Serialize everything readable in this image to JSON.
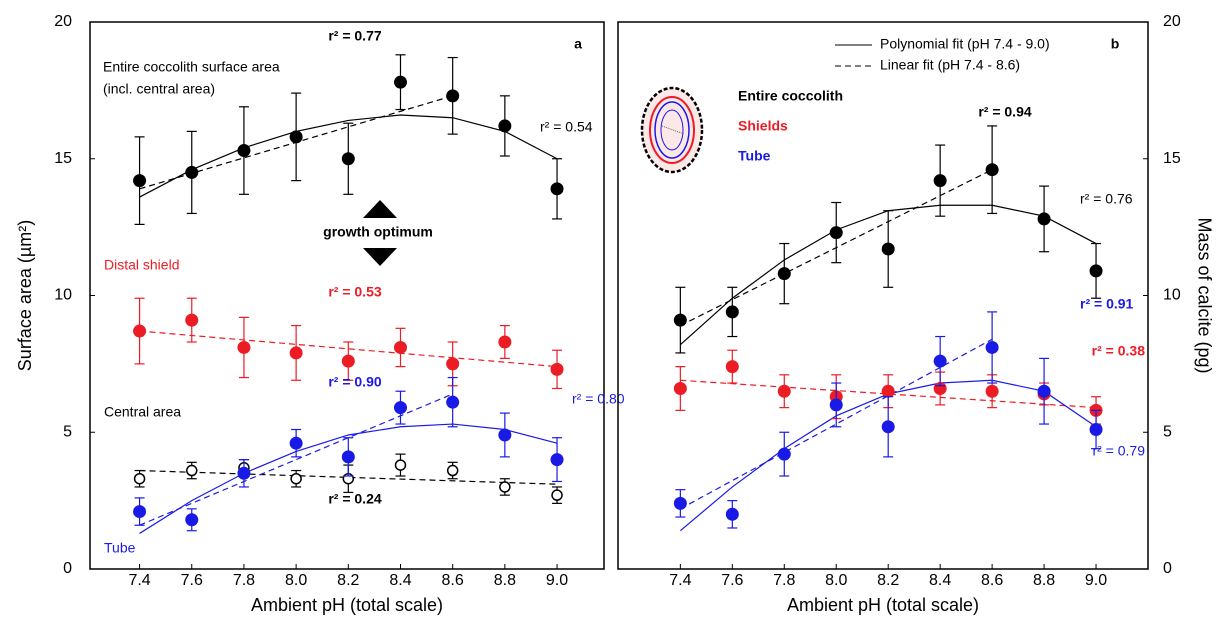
{
  "chart_data": [
    {
      "type": "scatter",
      "title": "a",
      "x_label": "Ambient pH (total scale)",
      "y_label": "Surface area (µm²)",
      "xlim": [
        7.21,
        9.18
      ],
      "ylim": [
        0,
        20
      ],
      "xticks": [
        7.4,
        7.6,
        7.8,
        {
          "value": 8,
          "label": "8.0"
        },
        8.2,
        8.4,
        8.6,
        8.8,
        {
          "value": 9,
          "label": "9.0"
        }
      ],
      "yticks": [
        0,
        5,
        10,
        15,
        20
      ],
      "y_axis_side": "left",
      "x": [
        7.4,
        7.6,
        7.8,
        8.0,
        8.2,
        8.4,
        8.6,
        8.8,
        9.0
      ],
      "series": [
        {
          "color": "#000000",
          "marker": "filled",
          "values": [
            14.2,
            14.5,
            15.3,
            15.8,
            15.0,
            17.8,
            17.3,
            16.2,
            13.9
          ],
          "errors": [
            1.6,
            1.5,
            1.6,
            1.6,
            1.3,
            1.0,
            1.4,
            1.1,
            1.1
          ]
        },
        {
          "color": "#ec1c24",
          "marker": "filled",
          "values": [
            8.7,
            9.1,
            8.1,
            7.9,
            7.6,
            8.1,
            7.5,
            8.3,
            7.3
          ],
          "errors": [
            1.2,
            0.8,
            1.1,
            1.0,
            0.7,
            0.7,
            0.8,
            0.6,
            0.7
          ]
        },
        {
          "color": "#000000",
          "marker": "open",
          "values": [
            3.3,
            3.6,
            3.7,
            3.3,
            3.3,
            3.8,
            3.6,
            3.0,
            2.7
          ],
          "errors": [
            0.3,
            0.3,
            0.3,
            0.3,
            0.5,
            0.4,
            0.3,
            0.3,
            0.3
          ]
        },
        {
          "color": "#1a1ae6",
          "marker": "filled",
          "values": [
            2.1,
            1.8,
            3.5,
            4.6,
            4.1,
            5.9,
            6.1,
            4.9,
            4.0
          ],
          "errors": [
            0.5,
            0.4,
            0.5,
            0.5,
            0.7,
            0.6,
            0.9,
            0.8,
            0.8
          ]
        }
      ],
      "fits": [
        {
          "kind": "polynomial",
          "color": "#000000",
          "x": [
            7.4,
            7.6,
            7.8,
            8.0,
            8.2,
            8.4,
            8.6,
            8.8,
            9.0
          ],
          "values": [
            13.6,
            14.6,
            15.4,
            16.0,
            16.4,
            16.6,
            16.5,
            16.0,
            15.0
          ]
        },
        {
          "kind": "linear",
          "color": "#000000",
          "x": [
            7.4,
            8.6
          ],
          "values": [
            13.9,
            17.3
          ]
        },
        {
          "kind": "linear",
          "color": "#ec1c24",
          "x": [
            7.4,
            9.0
          ],
          "values": [
            8.7,
            7.4
          ]
        },
        {
          "kind": "linear",
          "color": "#000000",
          "x": [
            7.4,
            9.0
          ],
          "values": [
            3.6,
            3.1
          ]
        },
        {
          "kind": "polynomial",
          "color": "#1a1ae6",
          "x": [
            7.4,
            7.6,
            7.8,
            8.0,
            8.2,
            8.4,
            8.6,
            8.8,
            9.0
          ],
          "values": [
            1.3,
            2.5,
            3.5,
            4.3,
            4.9,
            5.2,
            5.3,
            5.1,
            4.6
          ]
        },
        {
          "kind": "linear",
          "color": "#1a1ae6",
          "x": [
            7.4,
            8.6
          ],
          "values": [
            1.6,
            6.4
          ]
        }
      ],
      "annotations": [
        {
          "text": "r² = 0.77",
          "color": "#000000",
          "bold": true
        },
        {
          "text": "Entire coccolith surface area",
          "color": "#000000",
          "bold": false
        },
        {
          "text": "(incl. central area)",
          "color": "#000000",
          "bold": false
        },
        {
          "text": "r² = 0.54",
          "color": "#000000",
          "bold": false
        },
        {
          "text": "growth optimum",
          "color": "#000000",
          "bold": true
        },
        {
          "text": "Distal shield",
          "color": "#ec1c24",
          "bold": false
        },
        {
          "text": "r² = 0.53",
          "color": "#ec1c24",
          "bold": true
        },
        {
          "text": "r² = 0.90",
          "color": "#1a1ae6",
          "bold": true
        },
        {
          "text": "r² = 0.80",
          "color": "#1a1ae6",
          "bold": false
        },
        {
          "text": "Central area",
          "color": "#000000",
          "bold": false
        },
        {
          "text": "r² = 0.24",
          "color": "#000000",
          "bold": true
        },
        {
          "text": "Tube",
          "color": "#1a1ae6",
          "bold": false
        }
      ]
    },
    {
      "type": "scatter",
      "title": "b",
      "x_label": "Ambient pH (total scale)",
      "y_label": "Mass of calcite (pg)",
      "xlim": [
        7.16,
        9.2
      ],
      "ylim": [
        0,
        20
      ],
      "xticks": [
        7.4,
        7.6,
        7.8,
        {
          "value": 8,
          "label": "8.0"
        },
        8.2,
        8.4,
        8.6,
        8.8,
        {
          "value": 9,
          "label": "9.0"
        }
      ],
      "yticks": [
        0,
        5,
        10,
        15,
        20
      ],
      "y_axis_side": "right",
      "x": [
        7.4,
        7.6,
        7.8,
        8.0,
        8.2,
        8.4,
        8.6,
        8.8,
        9.0
      ],
      "series": [
        {
          "name": "Entire coccolith",
          "color": "#000000",
          "marker": "filled",
          "values": [
            9.1,
            9.4,
            10.8,
            12.3,
            11.7,
            14.2,
            14.6,
            12.8,
            10.9
          ],
          "errors": [
            1.2,
            0.9,
            1.1,
            1.1,
            1.4,
            1.3,
            1.6,
            1.2,
            1.0
          ]
        },
        {
          "name": "Shields",
          "color": "#ec1c24",
          "marker": "filled",
          "values": [
            6.6,
            7.4,
            6.5,
            6.3,
            6.5,
            6.6,
            6.5,
            6.4,
            5.8
          ],
          "errors": [
            0.8,
            0.6,
            0.6,
            0.8,
            0.6,
            0.6,
            0.6,
            0.4,
            0.5
          ]
        },
        {
          "name": "Tube",
          "color": "#1a1ae6",
          "marker": "filled",
          "values": [
            2.4,
            2.0,
            4.2,
            6.0,
            5.2,
            7.6,
            8.1,
            6.5,
            5.1
          ],
          "errors": [
            0.5,
            0.5,
            0.8,
            0.8,
            1.1,
            0.9,
            1.3,
            1.2,
            0.7
          ]
        }
      ],
      "fits": [
        {
          "kind": "polynomial",
          "color": "#000000",
          "x": [
            7.4,
            7.6,
            7.8,
            8.0,
            8.2,
            8.4,
            8.6,
            8.8,
            9.0
          ],
          "values": [
            8.2,
            9.9,
            11.3,
            12.4,
            13.1,
            13.3,
            13.3,
            12.9,
            11.9
          ]
        },
        {
          "kind": "linear",
          "color": "#000000",
          "x": [
            7.4,
            8.6
          ],
          "values": [
            8.9,
            14.6
          ]
        },
        {
          "kind": "linear",
          "color": "#ec1c24",
          "x": [
            7.4,
            9.0
          ],
          "values": [
            6.9,
            5.9
          ]
        },
        {
          "kind": "polynomial",
          "color": "#1a1ae6",
          "x": [
            7.4,
            7.6,
            7.8,
            8.0,
            8.2,
            8.4,
            8.6,
            8.8,
            9.0
          ],
          "values": [
            1.4,
            3.0,
            4.4,
            5.6,
            6.4,
            6.8,
            6.9,
            6.5,
            5.2
          ]
        },
        {
          "kind": "linear",
          "color": "#1a1ae6",
          "x": [
            7.4,
            8.6
          ],
          "values": [
            2.2,
            8.4
          ]
        }
      ],
      "legend": [
        {
          "label": "Polynomial fit (pH 7.4 - 9.0)",
          "kind": "polynomial"
        },
        {
          "label": "Linear fit (pH 7.4 - 8.6)",
          "kind": "linear"
        }
      ],
      "annotations": [
        {
          "text": "r² = 0.94",
          "color": "#000000",
          "bold": true
        },
        {
          "text": "r² = 0.76",
          "color": "#000000",
          "bold": false
        },
        {
          "text": "r² = 0.91",
          "color": "#1a1ae6",
          "bold": true
        },
        {
          "text": "r² = 0.38",
          "color": "#ec1c24",
          "bold": true
        },
        {
          "text": "r² = 0.79",
          "color": "#1a1ae6",
          "bold": false
        }
      ]
    }
  ]
}
